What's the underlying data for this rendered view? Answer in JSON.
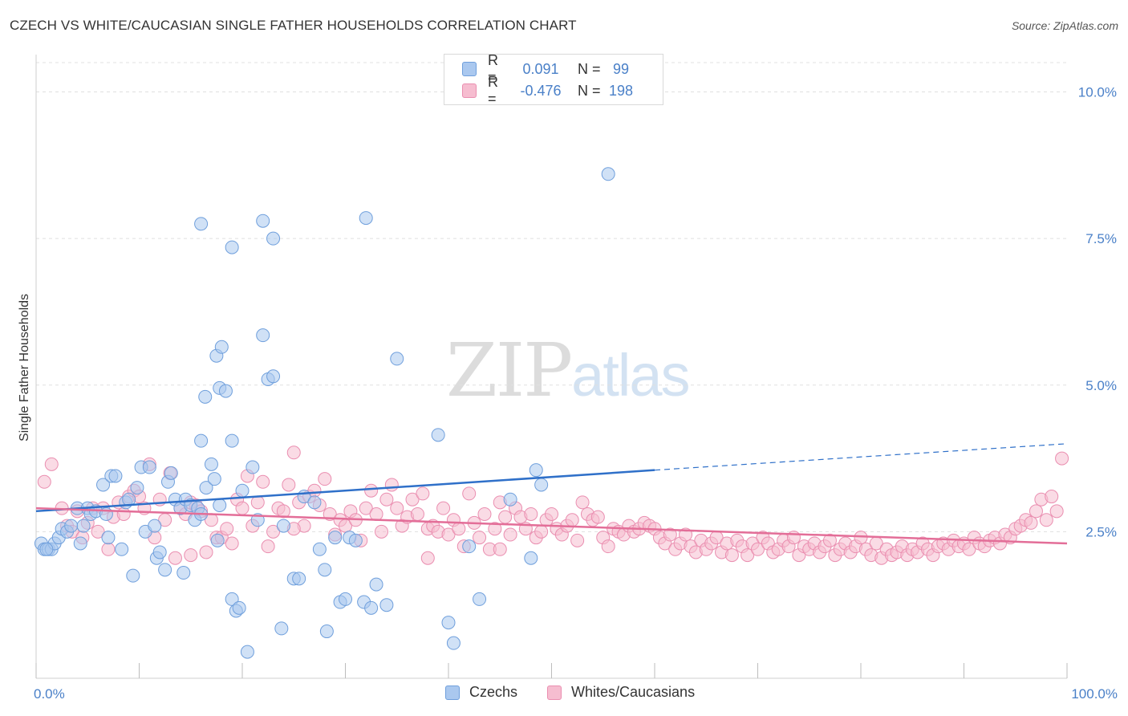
{
  "header": {
    "title": "CZECH VS WHITE/CAUCASIAN SINGLE FATHER HOUSEHOLDS CORRELATION CHART",
    "source": "Source: ZipAtlas.com"
  },
  "watermark": {
    "part1": "ZIP",
    "part2": "atlas"
  },
  "legend": {
    "rows": [
      {
        "r_label": "R =",
        "r_value": "0.091",
        "n_label": "N =",
        "n_value": "99"
      },
      {
        "r_label": "R =",
        "r_value": "-0.476",
        "n_label": "N =",
        "n_value": "198"
      }
    ]
  },
  "bottom_legend": {
    "czechs": "Czechs",
    "whites": "Whites/Caucasians"
  },
  "colors": {
    "czech_fill": "#aac8ef",
    "czech_stroke": "#6f9fdc",
    "czech_line": "#2f70c9",
    "white_fill": "#f6bdd0",
    "white_stroke": "#ea8eb0",
    "white_line": "#e36e98",
    "tick_label": "#4a80c8",
    "grid": "#e0e0e0"
  },
  "chart_data": {
    "type": "scatter",
    "title": "CZECH VS WHITE/CAUCASIAN SINGLE FATHER HOUSEHOLDS CORRELATION CHART",
    "xlabel": "",
    "ylabel": "Single Father Households",
    "xlim": [
      0,
      100
    ],
    "ylim": [
      0,
      10.5
    ],
    "x_tick_labels": [
      "0.0%",
      "100.0%"
    ],
    "y_ticks": [
      2.5,
      5.0,
      7.5,
      10.0
    ],
    "y_tick_labels": [
      "2.5%",
      "5.0%",
      "7.5%",
      "10.0%"
    ],
    "grid": true,
    "legend_position": "top-center",
    "series": [
      {
        "name": "Czechs",
        "r": 0.091,
        "n": 99,
        "trend": {
          "x0": 0,
          "y0": 2.85,
          "x1": 60,
          "y1": 3.55,
          "dash_to_x": 100,
          "dash_to_y": 4.0
        },
        "points": [
          [
            0.5,
            2.3
          ],
          [
            0.8,
            2.2
          ],
          [
            1.2,
            2.2
          ],
          [
            1.5,
            2.2
          ],
          [
            1.8,
            2.3
          ],
          [
            2.2,
            2.4
          ],
          [
            2.5,
            2.55
          ],
          [
            3,
            2.5
          ],
          [
            3.4,
            2.6
          ],
          [
            4,
            2.9
          ],
          [
            4.3,
            2.3
          ],
          [
            4.6,
            2.6
          ],
          [
            5,
            2.9
          ],
          [
            5.3,
            2.8
          ],
          [
            5.8,
            2.85
          ],
          [
            6.5,
            3.3
          ],
          [
            6.8,
            2.8
          ],
          [
            7,
            2.4
          ],
          [
            7.3,
            3.45
          ],
          [
            7.7,
            3.45
          ],
          [
            8.3,
            2.2
          ],
          [
            8.7,
            3
          ],
          [
            9,
            3.05
          ],
          [
            9.4,
            1.75
          ],
          [
            9.8,
            3.25
          ],
          [
            10.2,
            3.6
          ],
          [
            10.6,
            2.5
          ],
          [
            11,
            3.6
          ],
          [
            11.5,
            2.6
          ],
          [
            11.7,
            2.05
          ],
          [
            12,
            2.15
          ],
          [
            12.5,
            1.85
          ],
          [
            12.8,
            3.35
          ],
          [
            13.1,
            3.5
          ],
          [
            13.5,
            3.05
          ],
          [
            14,
            2.9
          ],
          [
            14.5,
            3.05
          ],
          [
            15,
            2.95
          ],
          [
            15.4,
            2.7
          ],
          [
            15.7,
            2.9
          ],
          [
            16,
            2.8
          ],
          [
            16.5,
            3.25
          ],
          [
            17,
            3.65
          ],
          [
            17.3,
            3.4
          ],
          [
            17.6,
            2.35
          ],
          [
            17.8,
            2.95
          ],
          [
            19,
            4.05
          ],
          [
            20,
            3.2
          ],
          [
            16,
            4.05
          ],
          [
            14.3,
            1.8
          ],
          [
            16.4,
            4.8
          ],
          [
            17.5,
            5.5
          ],
          [
            18,
            5.65
          ],
          [
            17.8,
            4.95
          ],
          [
            18.4,
            4.9
          ],
          [
            19,
            1.35
          ],
          [
            19.4,
            1.15
          ],
          [
            19.7,
            1.2
          ],
          [
            20.5,
            0.45
          ],
          [
            21,
            3.6
          ],
          [
            21.5,
            2.7
          ],
          [
            22,
            5.85
          ],
          [
            22.5,
            5.1
          ],
          [
            23,
            5.15
          ],
          [
            23.8,
            0.85
          ],
          [
            24,
            2.6
          ],
          [
            25,
            1.7
          ],
          [
            25.5,
            1.7
          ],
          [
            26,
            3.1
          ],
          [
            27,
            3
          ],
          [
            27.5,
            2.2
          ],
          [
            28,
            1.85
          ],
          [
            28.2,
            0.8
          ],
          [
            29,
            2.4
          ],
          [
            29.5,
            1.3
          ],
          [
            30,
            1.35
          ],
          [
            30.4,
            2.4
          ],
          [
            31,
            2.35
          ],
          [
            31.8,
            1.3
          ],
          [
            32.5,
            1.2
          ],
          [
            33,
            1.6
          ],
          [
            34,
            1.25
          ],
          [
            35,
            5.45
          ],
          [
            39,
            4.15
          ],
          [
            40,
            0.95
          ],
          [
            40.5,
            0.6
          ],
          [
            42,
            2.25
          ],
          [
            43,
            1.35
          ],
          [
            46,
            3.05
          ],
          [
            48,
            2.05
          ],
          [
            48.5,
            3.55
          ],
          [
            49,
            3.3
          ],
          [
            16,
            7.75
          ],
          [
            19,
            7.35
          ],
          [
            22,
            7.8
          ],
          [
            23,
            7.5
          ],
          [
            32,
            7.85
          ],
          [
            55.5,
            8.6
          ],
          [
            1,
            2.2
          ]
        ]
      },
      {
        "name": "Whites/Caucasians",
        "r": -0.476,
        "n": 198,
        "trend": {
          "x0": 0,
          "y0": 2.9,
          "x1": 100,
          "y1": 2.3
        },
        "points": [
          [
            1.5,
            3.65
          ],
          [
            0.8,
            3.35
          ],
          [
            2.5,
            2.9
          ],
          [
            3,
            2.6
          ],
          [
            3.5,
            2.5
          ],
          [
            4,
            2.85
          ],
          [
            4.5,
            2.4
          ],
          [
            5,
            2.65
          ],
          [
            5.5,
            2.9
          ],
          [
            6,
            2.5
          ],
          [
            6.5,
            2.9
          ],
          [
            7,
            2.2
          ],
          [
            7.5,
            2.75
          ],
          [
            8,
            3
          ],
          [
            8.5,
            2.8
          ],
          [
            9,
            3.1
          ],
          [
            9.5,
            3.2
          ],
          [
            10,
            3.1
          ],
          [
            10.5,
            2.9
          ],
          [
            11,
            3.65
          ],
          [
            11.5,
            2.4
          ],
          [
            12,
            3.05
          ],
          [
            12.5,
            2.7
          ],
          [
            13,
            3.5
          ],
          [
            13.5,
            2.05
          ],
          [
            14,
            2.9
          ],
          [
            14.5,
            2.8
          ],
          [
            15,
            3
          ],
          [
            15.5,
            2.95
          ],
          [
            16,
            2.85
          ],
          [
            16.5,
            2.15
          ],
          [
            17,
            2.7
          ],
          [
            17.5,
            2.4
          ],
          [
            18,
            2.4
          ],
          [
            18.5,
            2.55
          ],
          [
            19,
            2.3
          ],
          [
            19.5,
            3.05
          ],
          [
            20,
            2.9
          ],
          [
            20.5,
            3.45
          ],
          [
            21,
            2.6
          ],
          [
            21.5,
            3
          ],
          [
            22,
            3.35
          ],
          [
            22.5,
            2.25
          ],
          [
            23,
            2.5
          ],
          [
            23.5,
            2.9
          ],
          [
            24,
            2.85
          ],
          [
            24.5,
            3.3
          ],
          [
            25,
            3.85
          ],
          [
            25.5,
            3
          ],
          [
            26,
            2.6
          ],
          [
            26.5,
            3.1
          ],
          [
            27,
            3.2
          ],
          [
            27.5,
            2.95
          ],
          [
            28,
            3.4
          ],
          [
            28.5,
            2.8
          ],
          [
            29,
            2.45
          ],
          [
            29.5,
            2.7
          ],
          [
            30,
            2.6
          ],
          [
            30.5,
            2.85
          ],
          [
            31,
            2.7
          ],
          [
            31.5,
            2.35
          ],
          [
            32,
            2.9
          ],
          [
            32.5,
            3.2
          ],
          [
            33,
            2.8
          ],
          [
            33.5,
            2.5
          ],
          [
            34,
            3.05
          ],
          [
            34.5,
            3.3
          ],
          [
            35,
            2.9
          ],
          [
            35.5,
            2.6
          ],
          [
            36,
            2.75
          ],
          [
            36.5,
            3.05
          ],
          [
            37,
            2.8
          ],
          [
            37.5,
            3.15
          ],
          [
            38,
            2.55
          ],
          [
            38.5,
            2.6
          ],
          [
            39,
            2.5
          ],
          [
            39.5,
            2.9
          ],
          [
            40,
            2.45
          ],
          [
            40.5,
            2.7
          ],
          [
            41,
            2.55
          ],
          [
            41.5,
            2.25
          ],
          [
            42,
            3.15
          ],
          [
            42.5,
            2.65
          ],
          [
            43,
            2.4
          ],
          [
            43.5,
            2.8
          ],
          [
            44,
            2.2
          ],
          [
            44.5,
            2.55
          ],
          [
            45,
            3
          ],
          [
            45.5,
            2.75
          ],
          [
            46,
            2.45
          ],
          [
            46.5,
            2.9
          ],
          [
            47,
            2.75
          ],
          [
            47.5,
            2.55
          ],
          [
            48,
            2.8
          ],
          [
            48.5,
            2.4
          ],
          [
            49,
            2.5
          ],
          [
            49.5,
            2.7
          ],
          [
            50,
            2.8
          ],
          [
            50.5,
            2.55
          ],
          [
            51,
            2.45
          ],
          [
            51.5,
            2.6
          ],
          [
            52,
            2.7
          ],
          [
            52.5,
            2.35
          ],
          [
            53,
            3
          ],
          [
            53.5,
            2.8
          ],
          [
            54,
            2.7
          ],
          [
            54.5,
            2.75
          ],
          [
            55,
            2.4
          ],
          [
            55.5,
            2.25
          ],
          [
            56,
            2.55
          ],
          [
            56.5,
            2.5
          ],
          [
            57,
            2.45
          ],
          [
            57.5,
            2.6
          ],
          [
            58,
            2.5
          ],
          [
            58.5,
            2.55
          ],
          [
            59,
            2.65
          ],
          [
            59.5,
            2.6
          ],
          [
            60,
            2.55
          ],
          [
            60.5,
            2.4
          ],
          [
            61,
            2.3
          ],
          [
            61.5,
            2.45
          ],
          [
            62,
            2.2
          ],
          [
            62.5,
            2.3
          ],
          [
            63,
            2.45
          ],
          [
            63.5,
            2.25
          ],
          [
            64,
            2.15
          ],
          [
            64.5,
            2.35
          ],
          [
            65,
            2.2
          ],
          [
            65.5,
            2.3
          ],
          [
            66,
            2.4
          ],
          [
            66.5,
            2.15
          ],
          [
            67,
            2.3
          ],
          [
            67.5,
            2.1
          ],
          [
            68,
            2.35
          ],
          [
            68.5,
            2.25
          ],
          [
            69,
            2.1
          ],
          [
            69.5,
            2.3
          ],
          [
            70,
            2.2
          ],
          [
            70.5,
            2.4
          ],
          [
            71,
            2.3
          ],
          [
            71.5,
            2.15
          ],
          [
            72,
            2.2
          ],
          [
            72.5,
            2.35
          ],
          [
            73,
            2.25
          ],
          [
            73.5,
            2.4
          ],
          [
            74,
            2.1
          ],
          [
            74.5,
            2.25
          ],
          [
            75,
            2.2
          ],
          [
            75.5,
            2.3
          ],
          [
            76,
            2.15
          ],
          [
            76.5,
            2.25
          ],
          [
            77,
            2.35
          ],
          [
            77.5,
            2.1
          ],
          [
            78,
            2.2
          ],
          [
            78.5,
            2.3
          ],
          [
            79,
            2.15
          ],
          [
            79.5,
            2.25
          ],
          [
            80,
            2.4
          ],
          [
            80.5,
            2.2
          ],
          [
            81,
            2.1
          ],
          [
            81.5,
            2.3
          ],
          [
            82,
            2.05
          ],
          [
            82.5,
            2.2
          ],
          [
            83,
            2.1
          ],
          [
            83.5,
            2.15
          ],
          [
            84,
            2.25
          ],
          [
            84.5,
            2.1
          ],
          [
            85,
            2.2
          ],
          [
            85.5,
            2.15
          ],
          [
            86,
            2.3
          ],
          [
            86.5,
            2.2
          ],
          [
            87,
            2.1
          ],
          [
            87.5,
            2.25
          ],
          [
            88,
            2.3
          ],
          [
            88.5,
            2.2
          ],
          [
            89,
            2.35
          ],
          [
            89.5,
            2.25
          ],
          [
            90,
            2.3
          ],
          [
            90.5,
            2.2
          ],
          [
            91,
            2.4
          ],
          [
            91.5,
            2.3
          ],
          [
            92,
            2.25
          ],
          [
            92.5,
            2.35
          ],
          [
            93,
            2.4
          ],
          [
            93.5,
            2.3
          ],
          [
            94,
            2.45
          ],
          [
            94.5,
            2.4
          ],
          [
            95,
            2.55
          ],
          [
            95.5,
            2.6
          ],
          [
            96,
            2.7
          ],
          [
            96.5,
            2.65
          ],
          [
            97,
            2.85
          ],
          [
            97.5,
            3.05
          ],
          [
            98,
            2.7
          ],
          [
            98.5,
            3.1
          ],
          [
            99,
            2.85
          ],
          [
            99.5,
            3.75
          ],
          [
            25,
            2.55
          ],
          [
            15,
            2.1
          ],
          [
            38,
            2.05
          ],
          [
            45,
            2.2
          ]
        ]
      }
    ]
  }
}
